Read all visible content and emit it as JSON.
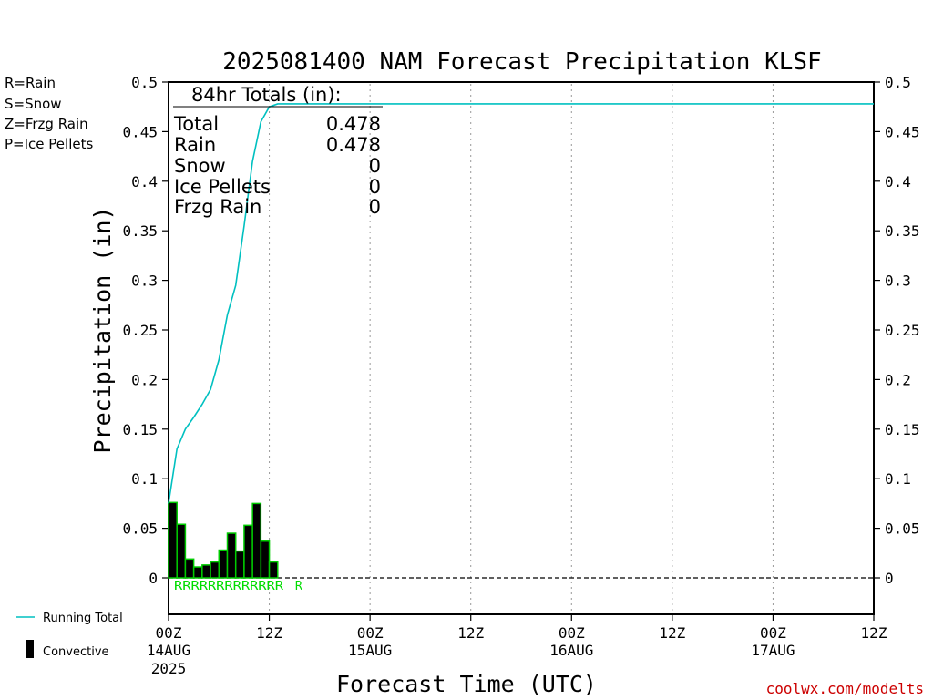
{
  "chart_data": {
    "type": "bar",
    "title": "2025081400 NAM Forecast Precipitation KLSF",
    "xlabel": "Forecast Time (UTC)",
    "ylabel": "Precipitation (in)",
    "ylim": [
      0,
      0.5
    ],
    "xlim_hours": [
      0,
      84
    ],
    "yticks": [
      "0",
      "0.05",
      "0.1",
      "0.15",
      "0.2",
      "0.25",
      "0.3",
      "0.35",
      "0.4",
      "0.45",
      "0.5"
    ],
    "xticks": [
      {
        "hour": 0,
        "label": "00Z",
        "sublabel": "14AUG",
        "year": "2025"
      },
      {
        "hour": 12,
        "label": "12Z",
        "sublabel": "",
        "year": ""
      },
      {
        "hour": 24,
        "label": "00Z",
        "sublabel": "15AUG",
        "year": ""
      },
      {
        "hour": 36,
        "label": "12Z",
        "sublabel": "",
        "year": ""
      },
      {
        "hour": 48,
        "label": "00Z",
        "sublabel": "16AUG",
        "year": ""
      },
      {
        "hour": 60,
        "label": "12Z",
        "sublabel": "",
        "year": ""
      },
      {
        "hour": 72,
        "label": "00Z",
        "sublabel": "17AUG",
        "year": ""
      },
      {
        "hour": 84,
        "label": "12Z",
        "sublabel": "",
        "year": ""
      }
    ],
    "grid": "vertical dotted",
    "series": [
      {
        "name": "Convective",
        "type": "bar",
        "hours": [
          1,
          2,
          3,
          4,
          5,
          6,
          7,
          8,
          9,
          10,
          11,
          12,
          13
        ],
        "values": [
          0.076,
          0.054,
          0.019,
          0.011,
          0.013,
          0.016,
          0.028,
          0.045,
          0.027,
          0.053,
          0.075,
          0.037,
          0.016
        ]
      },
      {
        "name": "Running Total",
        "type": "line",
        "color": "#00c0c0",
        "hours": [
          0,
          1,
          2,
          3,
          4,
          5,
          6,
          7,
          8,
          9,
          10,
          11,
          12,
          13,
          14,
          84
        ],
        "values": [
          0.075,
          0.13,
          0.15,
          0.162,
          0.175,
          0.19,
          0.22,
          0.265,
          0.295,
          0.355,
          0.42,
          0.46,
          0.475,
          0.478,
          0.478,
          0.478
        ]
      }
    ],
    "ptype_markers": {
      "text": "RRRRRRRRRRRRR",
      "extra": "R",
      "extra_hour": 15.5,
      "color": "#00dd00"
    },
    "totals_box": {
      "header": "84hr Totals (in):",
      "rows": [
        {
          "label": "Total",
          "value": "0.478"
        },
        {
          "label": "Rain",
          "value": "0.478"
        },
        {
          "label": "Snow",
          "value": "0"
        },
        {
          "label": "Ice Pellets",
          "value": "0"
        },
        {
          "label": "Frzg Rain",
          "value": "0"
        }
      ]
    },
    "ptype_legend": [
      {
        "text": "R=Rain",
        "color": "#00dd00"
      },
      {
        "text": "S=Snow",
        "color": "#3c3cff"
      },
      {
        "text": "Z=Frzg Rain",
        "color": "#ff9933"
      },
      {
        "text": "P=Ice Pellets",
        "color": "#ff33aa"
      }
    ],
    "legend": [
      {
        "text": "Running Total",
        "symbol": "line",
        "color": "#00c0c0"
      },
      {
        "text": "Convective",
        "symbol": "bar",
        "color": "#000000"
      }
    ],
    "bar_colors": {
      "fill": "#000000",
      "edge": "#00cc00"
    },
    "credit": "coolwx.com/modelts"
  }
}
